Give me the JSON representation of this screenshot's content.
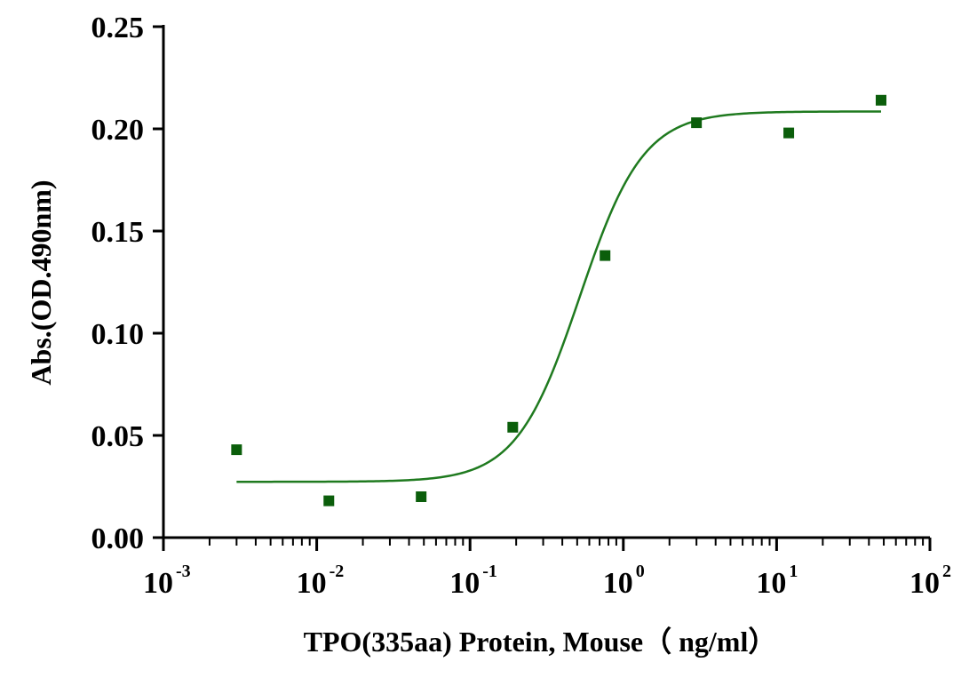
{
  "chart_data": {
    "type": "scatter",
    "title": "",
    "xlabel": "TPO(335aa) Protein, Mouse（ ng/ml）",
    "ylabel": "Abs.(OD.490nm)",
    "xscale": "log",
    "xlim": [
      0.001,
      100
    ],
    "ylim": [
      0,
      0.25
    ],
    "x_tick_labels": [
      {
        "base": "10",
        "exp": "-3"
      },
      {
        "base": "10",
        "exp": "-2"
      },
      {
        "base": "10",
        "exp": "-1"
      },
      {
        "base": "10",
        "exp": "0"
      },
      {
        "base": "10",
        "exp": "1"
      },
      {
        "base": "10",
        "exp": "2"
      }
    ],
    "y_tick_labels": [
      "0.00",
      "0.05",
      "0.10",
      "0.15",
      "0.20",
      "0.25"
    ],
    "y_ticks": [
      0,
      0.05,
      0.1,
      0.15,
      0.2,
      0.25
    ],
    "grid": false,
    "legend": "none",
    "series": [
      {
        "marker": "square",
        "color": "#0b5e0b",
        "x": [
          0.003,
          0.012,
          0.048,
          0.19,
          0.76,
          3.0,
          12.0,
          48.0
        ],
        "y": [
          0.043,
          0.018,
          0.02,
          0.054,
          0.138,
          0.203,
          0.198,
          0.214
        ]
      }
    ],
    "fit_curve": {
      "model": "4PL",
      "bottom": 0.0273,
      "top": 0.2085,
      "ec50": 0.52,
      "hill": 2.1,
      "x_range": [
        0.003,
        48.0
      ],
      "color": "#1f7a1f"
    }
  }
}
